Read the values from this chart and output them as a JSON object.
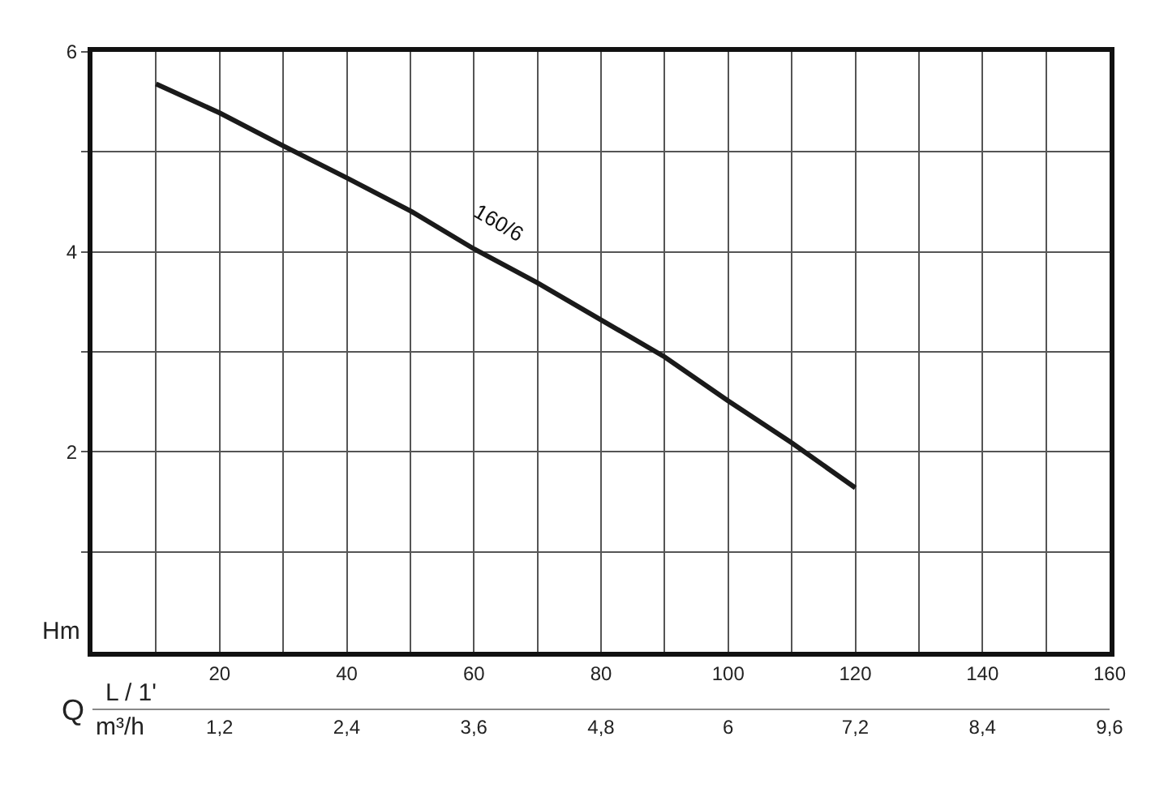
{
  "chart_data": {
    "type": "line",
    "xlabel": "L / 1'",
    "x2label": "m³/h",
    "ylabel": "Hm",
    "x": [
      10,
      20,
      30,
      40,
      50,
      60,
      70,
      80,
      90,
      100,
      110,
      120
    ],
    "series": [
      {
        "color": "#1a1a1a",
        "values": [
          5.68,
          5.39,
          5.06,
          4.74,
          4.41,
          4.03,
          3.69,
          3.32,
          2.95,
          2.51,
          2.09,
          1.64
        ]
      }
    ],
    "xlim": [
      0,
      160
    ],
    "xticks": [
      {
        "value": 10,
        "label": null
      },
      20,
      {
        "value": 30,
        "label": null
      },
      40,
      {
        "value": 50,
        "label": null
      },
      60,
      {
        "value": 70,
        "label": null
      },
      80,
      {
        "value": 90,
        "label": null
      },
      100,
      {
        "value": 110,
        "label": null
      },
      120,
      {
        "value": 130,
        "label": null
      },
      140,
      {
        "value": 150,
        "label": null
      },
      160
    ],
    "x2lim": [
      0,
      9.6
    ],
    "x2ticks": [
      {
        "value": 1.2,
        "label": "1,2"
      },
      {
        "value": 2.4,
        "label": "2,4"
      },
      {
        "value": 3.6,
        "label": "3,6"
      },
      {
        "value": 4.8,
        "label": "4,8"
      },
      6,
      {
        "value": 7.2,
        "label": "7,2"
      },
      {
        "value": 8.4,
        "label": "8,4"
      },
      {
        "value": 9.6,
        "label": "9,6"
      }
    ],
    "ylim": [
      0,
      6
    ],
    "yticks": [
      {
        "value": 1,
        "label": null
      },
      2,
      {
        "value": 3,
        "label": null
      },
      4,
      {
        "value": 5,
        "label": null
      },
      6
    ],
    "grid": true,
    "marker": "none",
    "line_style": "solid",
    "annotations": [
      {
        "text": "160/6",
        "x": 64,
        "y": 4.0
      },
      "Q"
    ]
  }
}
